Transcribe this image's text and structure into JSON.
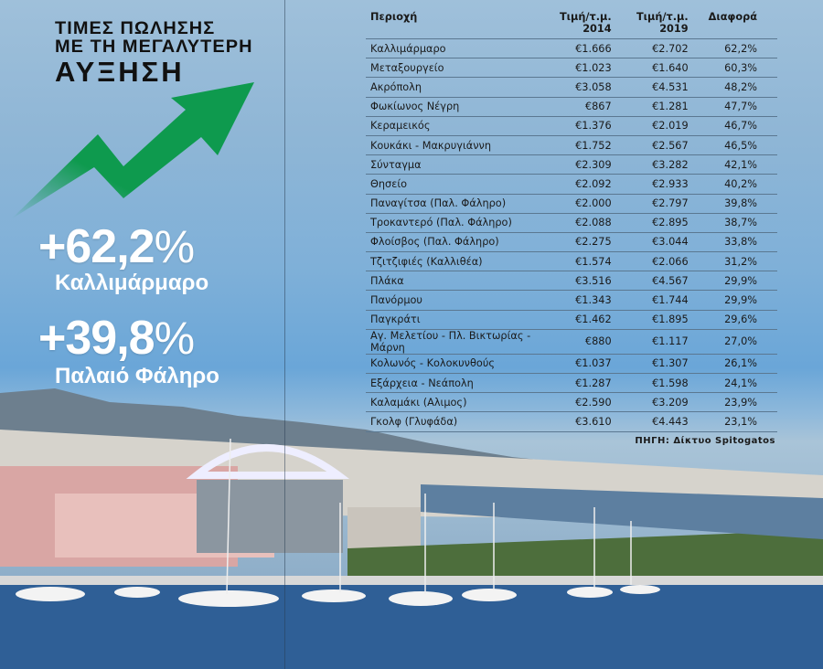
{
  "title": {
    "line1": "ΤΙΜΕΣ ΠΩΛΗΣΗΣ",
    "line2": "ΜΕ ΤΗ ΜΕΓΑΛΥΤΕΡΗ",
    "line3": "ΑΥΞΗΣΗ"
  },
  "highlights": [
    {
      "value": "+62,2",
      "pct": "%",
      "area": "Καλλιμάρμαρο"
    },
    {
      "value": "+39,8",
      "pct": "%",
      "area": "Παλαιό Φάληρο"
    }
  ],
  "colors": {
    "arrow": "#0e9a4e",
    "text": "#1a1a1a"
  },
  "table": {
    "headers": {
      "area": "Περιοχή",
      "p2014": "Τιμή/τ.μ. 2014",
      "p2019": "Τιμή/τ.μ. 2019",
      "diff": "Διαφορά"
    },
    "rows": [
      [
        "Καλλιμάρμαρο",
        "€1.666",
        "€2.702",
        "62,2%"
      ],
      [
        "Μεταξουργείο",
        "€1.023",
        "€1.640",
        "60,3%"
      ],
      [
        "Ακρόπολη",
        "€3.058",
        "€4.531",
        "48,2%"
      ],
      [
        "Φωκίωνος Νέγρη",
        "€867",
        "€1.281",
        "47,7%"
      ],
      [
        "Κεραμεικός",
        "€1.376",
        "€2.019",
        "46,7%"
      ],
      [
        "Κουκάκι - Μακρυγιάννη",
        "€1.752",
        "€2.567",
        "46,5%"
      ],
      [
        "Σύνταγμα",
        "€2.309",
        "€3.282",
        "42,1%"
      ],
      [
        "Θησείο",
        "€2.092",
        "€2.933",
        "40,2%"
      ],
      [
        "Παναγίτσα (Παλ. Φάληρο)",
        "€2.000",
        "€2.797",
        "39,8%"
      ],
      [
        "Τροκαντερό (Παλ. Φάληρο)",
        "€2.088",
        "€2.895",
        "38,7%"
      ],
      [
        "Φλοίσβος (Παλ. Φάληρο)",
        "€2.275",
        "€3.044",
        "33,8%"
      ],
      [
        "Τζιτζιφιές (Καλλιθέα)",
        "€1.574",
        "€2.066",
        "31,2%"
      ],
      [
        "Πλάκα",
        "€3.516",
        "€4.567",
        "29,9%"
      ],
      [
        "Πανόρμου",
        "€1.343",
        "€1.744",
        "29,9%"
      ],
      [
        "Παγκράτι",
        "€1.462",
        "€1.895",
        "29,6%"
      ],
      [
        "Αγ. Μελετίου - Πλ. Βικτωρίας - Μάρνη",
        "€880",
        "€1.117",
        "27,0%"
      ],
      [
        "Κολωνός - Κολοκυνθούς",
        "€1.037",
        "€1.307",
        "26,1%"
      ],
      [
        "Εξάρχεια - Νεάπολη",
        "€1.287",
        "€1.598",
        "24,1%"
      ],
      [
        "Καλαμάκι (Αλιμος)",
        "€2.590",
        "€3.209",
        "23,9%"
      ],
      [
        "Γκολφ (Γλυφάδα)",
        "€3.610",
        "€4.443",
        "23,1%"
      ]
    ]
  },
  "source": "ΠΗΓΗ: Δίκτυο Spitogatos"
}
